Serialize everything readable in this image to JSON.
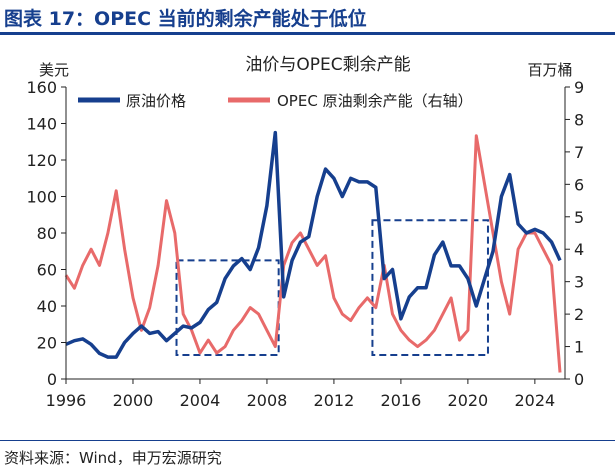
{
  "figure": {
    "title": "图表 17：OPEC 当前的剩余产能处于低位",
    "source": "资料来源：Wind，申万宏源研究",
    "colors": {
      "brand": "#163f8e"
    }
  },
  "chart_data": {
    "type": "line",
    "title": "油价与OPEC剩余产能",
    "left_unit": "美元",
    "right_unit": "百万桶",
    "xlim": [
      1996,
      2025.8
    ],
    "ylim": [
      0,
      160
    ],
    "y2lim": [
      0,
      9
    ],
    "x_ticks": [
      "1996",
      "2000",
      "2004",
      "2008",
      "2012",
      "2016",
      "2020",
      "2024"
    ],
    "y_ticks": [
      "0",
      "20",
      "40",
      "60",
      "80",
      "100",
      "120",
      "140",
      "160"
    ],
    "y2_ticks": [
      "0",
      "1",
      "2",
      "3",
      "4",
      "5",
      "6",
      "7",
      "8",
      "9"
    ],
    "grid": false,
    "legend_position": "top",
    "x": [
      1996,
      1996.5,
      1997,
      1997.5,
      1998,
      1998.5,
      1999,
      1999.5,
      2000,
      2000.5,
      2001,
      2001.5,
      2002,
      2002.5,
      2003,
      2003.5,
      2004,
      2004.5,
      2005,
      2005.5,
      2006,
      2006.5,
      2007,
      2007.5,
      2008,
      2008.5,
      2009,
      2009.5,
      2010,
      2010.5,
      2011,
      2011.5,
      2012,
      2012.5,
      2013,
      2013.5,
      2014,
      2014.5,
      2015,
      2015.5,
      2016,
      2016.5,
      2017,
      2017.5,
      2018,
      2018.5,
      2019,
      2019.5,
      2020,
      2020.5,
      2021,
      2021.5,
      2022,
      2022.5,
      2023,
      2023.5,
      2024,
      2024.5,
      2025,
      2025.5
    ],
    "series": [
      {
        "name": "原油价格",
        "axis": "left",
        "color": "#163f8e",
        "values": [
          19,
          21,
          22,
          19,
          14,
          12,
          12,
          20,
          25,
          29,
          25,
          26,
          21,
          25,
          29,
          28,
          31,
          38,
          42,
          55,
          62,
          66,
          60,
          72,
          95,
          135,
          45,
          65,
          75,
          78,
          100,
          115,
          110,
          100,
          110,
          108,
          108,
          105,
          55,
          60,
          33,
          45,
          50,
          50,
          68,
          75,
          62,
          62,
          55,
          40,
          55,
          70,
          100,
          112,
          85,
          80,
          82,
          80,
          75,
          65
        ]
      },
      {
        "name": "OPEC 原油剩余产能（右轴）",
        "axis": "right",
        "color": "#e86a6a",
        "values": [
          3.2,
          2.8,
          3.5,
          4.0,
          3.5,
          4.5,
          5.8,
          4.0,
          2.5,
          1.5,
          2.2,
          3.5,
          5.5,
          4.5,
          2.0,
          1.5,
          0.8,
          1.2,
          0.8,
          1.0,
          1.5,
          1.8,
          2.2,
          2.0,
          1.5,
          1.0,
          3.5,
          4.2,
          4.5,
          4.0,
          3.5,
          3.8,
          2.5,
          2.0,
          1.8,
          2.2,
          2.5,
          2.2,
          3.5,
          2.0,
          1.5,
          1.2,
          1.0,
          1.2,
          1.5,
          2.0,
          2.5,
          1.2,
          1.5,
          7.5,
          6.0,
          4.5,
          3.0,
          2.0,
          4.0,
          4.5,
          4.5,
          4.0,
          3.5,
          0.2
        ]
      }
    ],
    "highlight_boxes": [
      {
        "x": [
          2002.6,
          2008.7
        ],
        "y": [
          0,
          65
        ]
      },
      {
        "x": [
          2014.3,
          2021.2
        ],
        "y": [
          0,
          87
        ]
      }
    ]
  }
}
